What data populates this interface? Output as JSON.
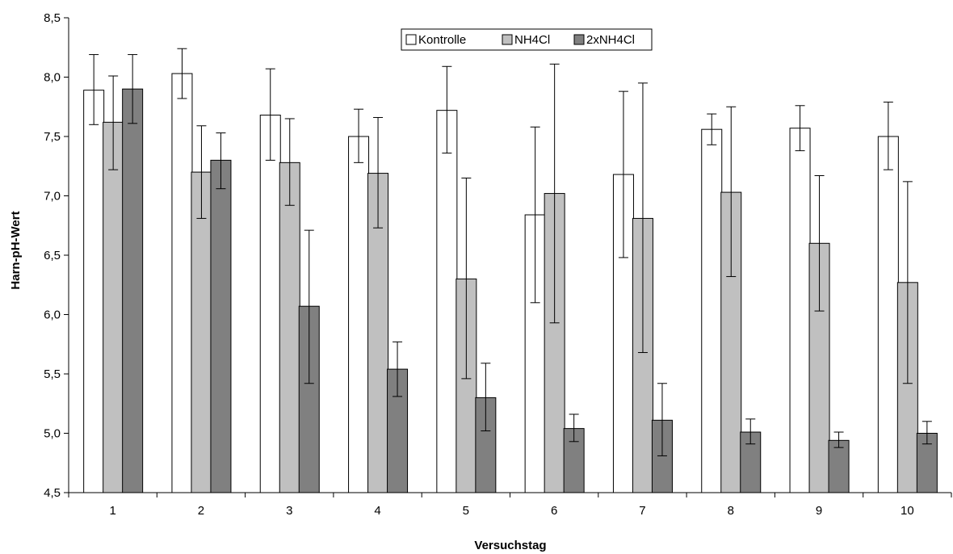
{
  "chart_data": {
    "type": "bar",
    "title": "",
    "xlabel": "Versuchstag",
    "ylabel": "Harn-pH-Wert",
    "ylim": [
      4.5,
      8.5
    ],
    "y_ticks": [
      "4,5",
      "5,0",
      "5,5",
      "6,0",
      "6,5",
      "7,0",
      "7,5",
      "8,0",
      "8,5"
    ],
    "categories": [
      "1",
      "2",
      "3",
      "4",
      "5",
      "6",
      "7",
      "8",
      "9",
      "10"
    ],
    "legend_position": "top-center",
    "grid": false,
    "series": [
      {
        "name": "Kontrolle",
        "color": "#ffffff",
        "values": [
          7.89,
          8.03,
          7.68,
          7.5,
          7.72,
          6.84,
          7.18,
          7.56,
          7.57,
          7.5
        ],
        "err_high": [
          8.19,
          8.24,
          8.07,
          7.73,
          8.09,
          7.58,
          7.88,
          7.69,
          7.76,
          7.79
        ],
        "err_low": [
          7.6,
          7.82,
          7.3,
          7.28,
          7.36,
          6.1,
          6.48,
          7.43,
          7.38,
          7.22
        ]
      },
      {
        "name": "NH4Cl",
        "color": "#c0c0c0",
        "values": [
          7.62,
          7.2,
          7.28,
          7.19,
          6.3,
          7.02,
          6.81,
          7.03,
          6.6,
          6.27
        ],
        "err_high": [
          8.01,
          7.59,
          7.65,
          7.66,
          7.15,
          8.11,
          7.95,
          7.75,
          7.17,
          7.12
        ],
        "err_low": [
          7.22,
          6.81,
          6.92,
          6.73,
          5.46,
          5.93,
          5.68,
          6.32,
          6.03,
          5.42
        ]
      },
      {
        "name": "2xNH4Cl",
        "color": "#808080",
        "values": [
          7.9,
          7.3,
          6.07,
          5.54,
          5.3,
          5.04,
          5.11,
          5.01,
          4.94,
          5.0
        ],
        "err_high": [
          8.19,
          7.53,
          6.71,
          5.77,
          5.59,
          5.16,
          5.42,
          5.12,
          5.01,
          5.1
        ],
        "err_low": [
          7.61,
          7.06,
          5.42,
          5.31,
          5.02,
          4.93,
          4.81,
          4.91,
          4.88,
          4.91
        ]
      }
    ]
  }
}
